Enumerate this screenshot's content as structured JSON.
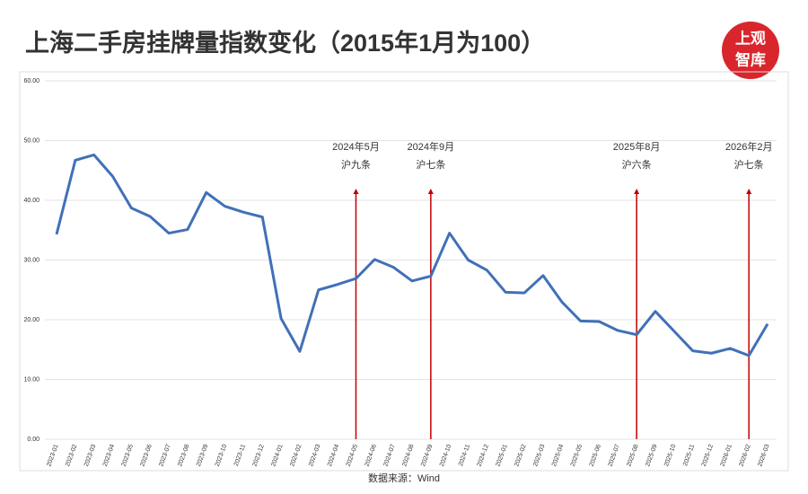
{
  "chart_data": {
    "type": "line",
    "title": "上海二手房挂牌量指数变化（2015年1月为100）",
    "logo": [
      "上观",
      "智库"
    ],
    "source": "数据来源：Wind",
    "categories": [
      "2023-01",
      "2023-02",
      "2023-03",
      "2023-04",
      "2023-05",
      "2023-06",
      "2023-07",
      "2023-08",
      "2023-09",
      "2023-10",
      "2023-11",
      "2023-12",
      "2024-01",
      "2024-02",
      "2024-03",
      "2024-04",
      "2024-05",
      "2024-06",
      "2024-07",
      "2024-08",
      "2024-09",
      "2024-10",
      "2024-11",
      "2024-12",
      "2025-01",
      "2025-02",
      "2025-03",
      "2025-04",
      "2025-05",
      "2025-06",
      "2025-07",
      "2025-08",
      "2025-09",
      "2025-10",
      "2025-11",
      "2025-12",
      "2026-01",
      "2026-02",
      "2026-03"
    ],
    "series": [
      {
        "color": "#4170b8",
        "values": [
          34.3,
          46.7,
          47.6,
          44.0,
          38.7,
          37.3,
          34.5,
          35.1,
          41.3,
          39.0,
          38.0,
          37.2,
          20.2,
          14.7,
          25.0,
          25.9,
          26.9,
          30.1,
          28.8,
          26.5,
          27.3,
          34.5,
          30.0,
          28.3,
          24.6,
          24.5,
          27.4,
          23.0,
          19.8,
          19.7,
          18.2,
          17.5,
          21.4,
          18.1,
          14.8,
          14.4,
          15.2,
          14.0,
          19.3
        ]
      }
    ],
    "ylim": [
      0,
      60
    ],
    "yticks": [
      {
        "value": 0,
        "label": "0.00"
      },
      {
        "value": 10,
        "label": "10.00"
      },
      {
        "value": 20,
        "label": "20.00"
      },
      {
        "value": 30,
        "label": "30.00"
      },
      {
        "value": 40,
        "label": "40.00"
      },
      {
        "value": 50,
        "label": "50.00"
      },
      {
        "value": 60,
        "label": "60.00"
      }
    ],
    "grid": true,
    "annotations": [
      {
        "x": "2024-05",
        "date": "2024年5月",
        "label": "沪九条",
        "color": "#c00000"
      },
      {
        "x": "2024-09",
        "date": "2024年9月",
        "label": "沪七条",
        "color": "#c00000"
      },
      {
        "x": "2025-08",
        "date": "2025年8月",
        "label": "沪六条",
        "color": "#c00000"
      },
      {
        "x": "2026-02",
        "date": "2026年2月",
        "label": "沪七条",
        "color": "#c00000"
      }
    ]
  }
}
